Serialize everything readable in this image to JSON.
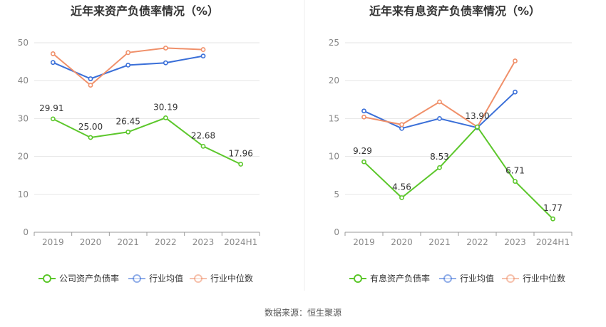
{
  "source_text": "数据来源：恒生聚源",
  "colors": {
    "company": "#5cc72b",
    "avg": "#3a6fd8",
    "median": "#f0906a",
    "grid": "#e6e6e6",
    "axis": "#999999"
  },
  "chart_data": [
    {
      "type": "line",
      "title": "近年来资产负债率情况（%）",
      "categories": [
        "2019",
        "2020",
        "2021",
        "2022",
        "2023",
        "2024H1"
      ],
      "ylim": [
        0,
        50
      ],
      "yticks": [
        0,
        10,
        20,
        30,
        40,
        50
      ],
      "grid": true,
      "legend_position": "bottom",
      "series": [
        {
          "name": "公司资产负债率",
          "key": "company",
          "values": [
            29.91,
            25.0,
            26.45,
            30.19,
            22.68,
            17.96
          ],
          "labels": [
            "29.91",
            "25.00",
            "26.45",
            "30.19",
            "22.68",
            "17.96"
          ]
        },
        {
          "name": "行业均值",
          "key": "avg",
          "values": [
            44.8,
            40.5,
            44.1,
            44.7,
            46.5,
            null
          ]
        },
        {
          "name": "行业中位数",
          "key": "median",
          "values": [
            47.1,
            38.8,
            47.4,
            48.6,
            48.2,
            null
          ]
        }
      ]
    },
    {
      "type": "line",
      "title": "近年来有息资产负债率情况（%）",
      "categories": [
        "2019",
        "2020",
        "2021",
        "2022",
        "2023",
        "2024H1"
      ],
      "ylim": [
        0,
        25
      ],
      "yticks": [
        0,
        5,
        10,
        15,
        20,
        25
      ],
      "grid": true,
      "legend_position": "bottom",
      "series": [
        {
          "name": "有息资产负债率",
          "key": "company",
          "values": [
            9.29,
            4.56,
            8.53,
            13.9,
            6.71,
            1.77
          ],
          "labels": [
            "9.29",
            "4.56",
            "8.53",
            "13.90",
            "6.71",
            "1.77"
          ]
        },
        {
          "name": "行业均值",
          "key": "avg",
          "values": [
            16.0,
            13.7,
            15.0,
            13.8,
            18.5,
            null
          ]
        },
        {
          "name": "行业中位数",
          "key": "median",
          "values": [
            15.2,
            14.2,
            17.2,
            13.9,
            22.6,
            null
          ]
        }
      ]
    }
  ]
}
